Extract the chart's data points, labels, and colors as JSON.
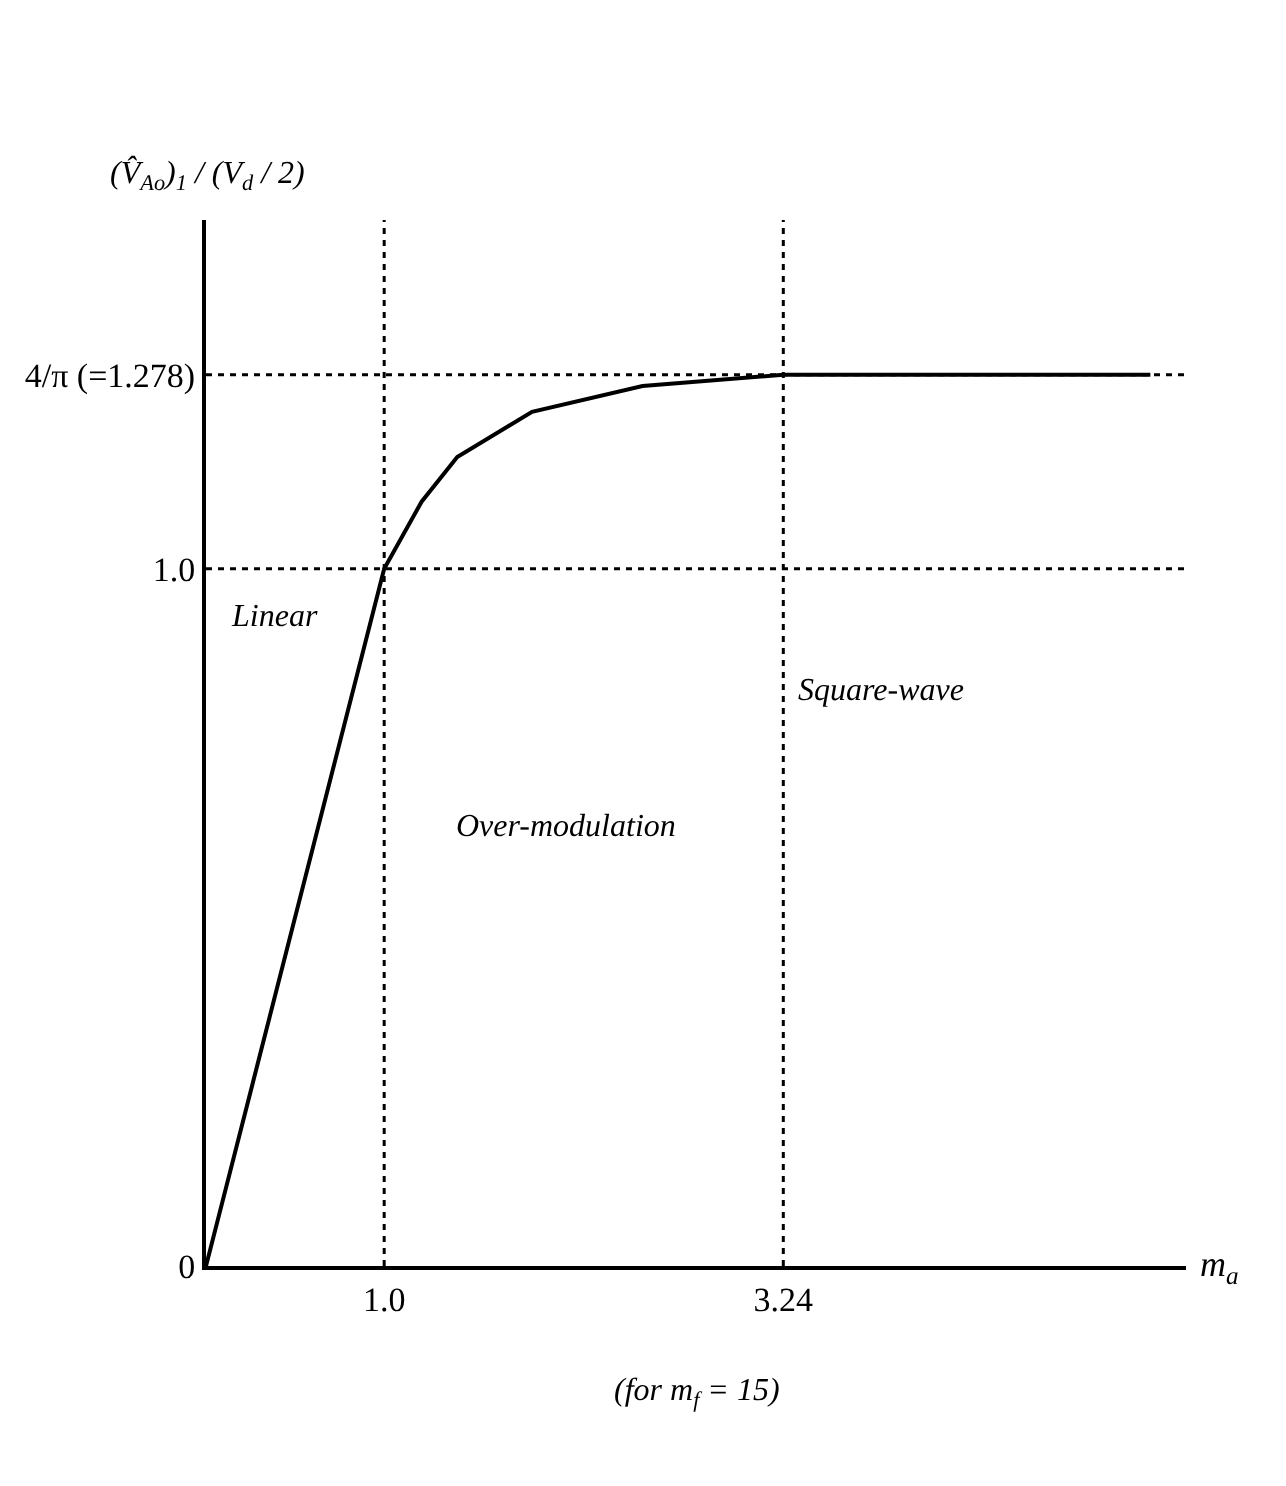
{
  "chart_data": {
    "type": "line",
    "xlabel": "m$_{a}$",
    "ylabel": "(V̂$_{Ao}$)$_{1}$ / (V$_{d}$ / 2)",
    "x": [
      0,
      1.0,
      1.21,
      1.41,
      1.83,
      2.45,
      3.24,
      5.3
    ],
    "series": [
      {
        "color": "#000000",
        "values": [
          0,
          1.0,
          1.096,
          1.16,
          1.225,
          1.262,
          1.278,
          1.278
        ]
      }
    ],
    "xlim": [
      0,
      5.5
    ],
    "ylim": [
      0,
      1.5
    ],
    "xticks": [
      {
        "value": 1.0,
        "label": "1.0"
      },
      {
        "value": 3.24,
        "label": "3.24"
      }
    ],
    "yticks": [
      0,
      {
        "value": 1.0,
        "label": "1.0"
      },
      {
        "value": 1.278,
        "label": "4/π (=1.278)"
      }
    ],
    "ref_lines": [
      {
        "axis": "x",
        "value": 1.0,
        "color": "#000000",
        "line_style": "dotted"
      },
      {
        "axis": "x",
        "value": 3.24,
        "color": "#000000",
        "line_style": "dotted"
      },
      {
        "axis": "y",
        "value": 1.0,
        "color": "#000000",
        "line_style": "dotted"
      },
      {
        "axis": "y",
        "value": 1.278,
        "color": "#000000",
        "line_style": "dotted"
      }
    ],
    "annotations": [
      "Linear",
      "Over-modulation",
      "Square-wave",
      "(for m$_{f}$ = 15)"
    ],
    "marker": "none",
    "line_style": "solid"
  }
}
